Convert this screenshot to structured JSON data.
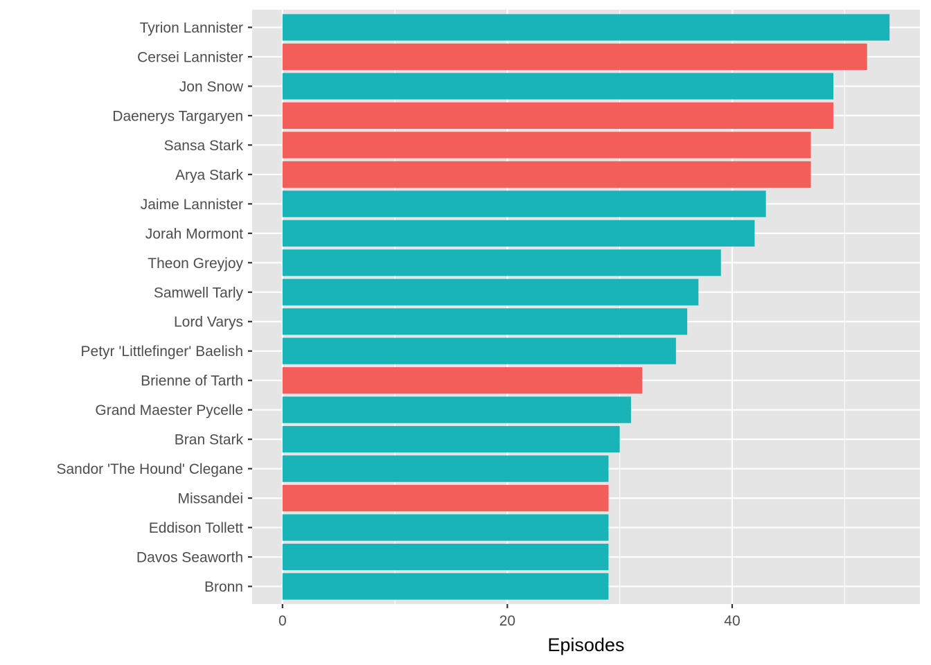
{
  "chart_data": {
    "type": "bar",
    "orientation": "horizontal",
    "title": "",
    "xlabel": "Episodes",
    "ylabel": "",
    "xlim": [
      -2.7,
      56.7
    ],
    "xticks": [
      0,
      20,
      40
    ],
    "grid": true,
    "legend": "none",
    "colors": {
      "teal": "#19b4b8",
      "red": "#f35e5a",
      "panel": "#e5e5e5",
      "grid": "#ffffff"
    },
    "bars": [
      {
        "label": "Tyrion Lannister",
        "value": 54,
        "color": "teal"
      },
      {
        "label": "Cersei Lannister",
        "value": 52,
        "color": "red"
      },
      {
        "label": "Jon Snow",
        "value": 49,
        "color": "teal"
      },
      {
        "label": "Daenerys Targaryen",
        "value": 49,
        "color": "red"
      },
      {
        "label": "Sansa Stark",
        "value": 47,
        "color": "red"
      },
      {
        "label": "Arya Stark",
        "value": 47,
        "color": "red"
      },
      {
        "label": "Jaime Lannister",
        "value": 43,
        "color": "teal"
      },
      {
        "label": "Jorah Mormont",
        "value": 42,
        "color": "teal"
      },
      {
        "label": "Theon Greyjoy",
        "value": 39,
        "color": "teal"
      },
      {
        "label": "Samwell Tarly",
        "value": 37,
        "color": "teal"
      },
      {
        "label": "Lord Varys",
        "value": 36,
        "color": "teal"
      },
      {
        "label": "Petyr 'Littlefinger' Baelish",
        "value": 35,
        "color": "teal"
      },
      {
        "label": "Brienne of Tarth",
        "value": 32,
        "color": "red"
      },
      {
        "label": "Grand Maester Pycelle",
        "value": 31,
        "color": "teal"
      },
      {
        "label": "Bran Stark",
        "value": 30,
        "color": "teal"
      },
      {
        "label": "Sandor 'The Hound' Clegane",
        "value": 29,
        "color": "teal"
      },
      {
        "label": "Missandei",
        "value": 29,
        "color": "red"
      },
      {
        "label": "Eddison Tollett",
        "value": 29,
        "color": "teal"
      },
      {
        "label": "Davos Seaworth",
        "value": 29,
        "color": "teal"
      },
      {
        "label": "Bronn",
        "value": 29,
        "color": "teal"
      }
    ]
  }
}
